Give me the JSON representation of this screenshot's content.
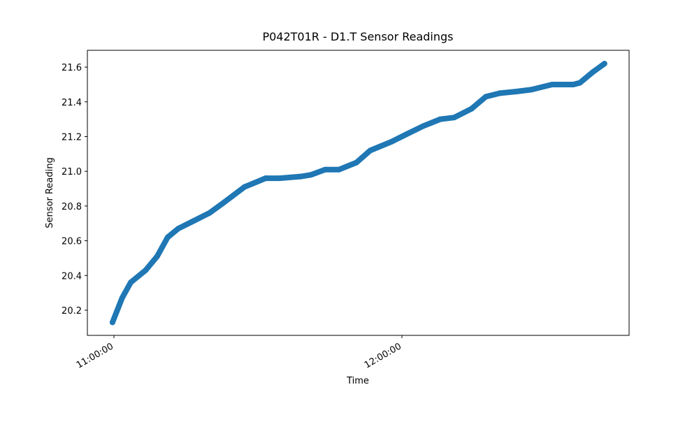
{
  "chart_data": {
    "type": "scatter",
    "title": "P042T01R - D1.T Sensor Readings",
    "x_label": "Time",
    "y_label": "Sensor Reading",
    "x": [
      "10:59:42",
      "11:01:42",
      "11:03:30",
      "11:06:36",
      "11:09:00",
      "11:11:12",
      "11:13:24",
      "11:16:18",
      "11:19:54",
      "11:22:54",
      "11:27:12",
      "11:31:36",
      "11:34:30",
      "11:38:54",
      "11:41:06",
      "11:44:00",
      "11:46:54",
      "11:50:30",
      "11:53:24",
      "11:57:48",
      "12:00:42",
      "12:04:24",
      "12:08:00",
      "12:10:54",
      "12:14:30",
      "12:17:30",
      "12:20:24",
      "12:24:00",
      "12:26:54",
      "12:31:18",
      "12:35:42",
      "12:37:06",
      "12:39:42",
      "12:42:12"
    ],
    "values": [
      20.13,
      20.27,
      20.36,
      20.43,
      20.51,
      20.62,
      20.67,
      20.71,
      20.76,
      20.82,
      20.91,
      20.96,
      20.96,
      20.97,
      20.98,
      21.01,
      21.01,
      21.05,
      21.12,
      21.17,
      21.21,
      21.26,
      21.3,
      21.31,
      21.36,
      21.43,
      21.45,
      21.46,
      21.47,
      21.5,
      21.5,
      21.51,
      21.57,
      21.62
    ],
    "color": "#1f77b4",
    "xlim": [
      "10:54:28",
      "12:47:20"
    ],
    "xticks": [
      "11:00:00",
      "12:00:00"
    ],
    "ylim": [
      20.055,
      21.697
    ],
    "yticks": [
      20.2,
      20.4,
      20.6,
      20.8,
      {
        "value": 21,
        "label": "21.0"
      },
      21.2,
      21.4,
      21.6
    ]
  }
}
